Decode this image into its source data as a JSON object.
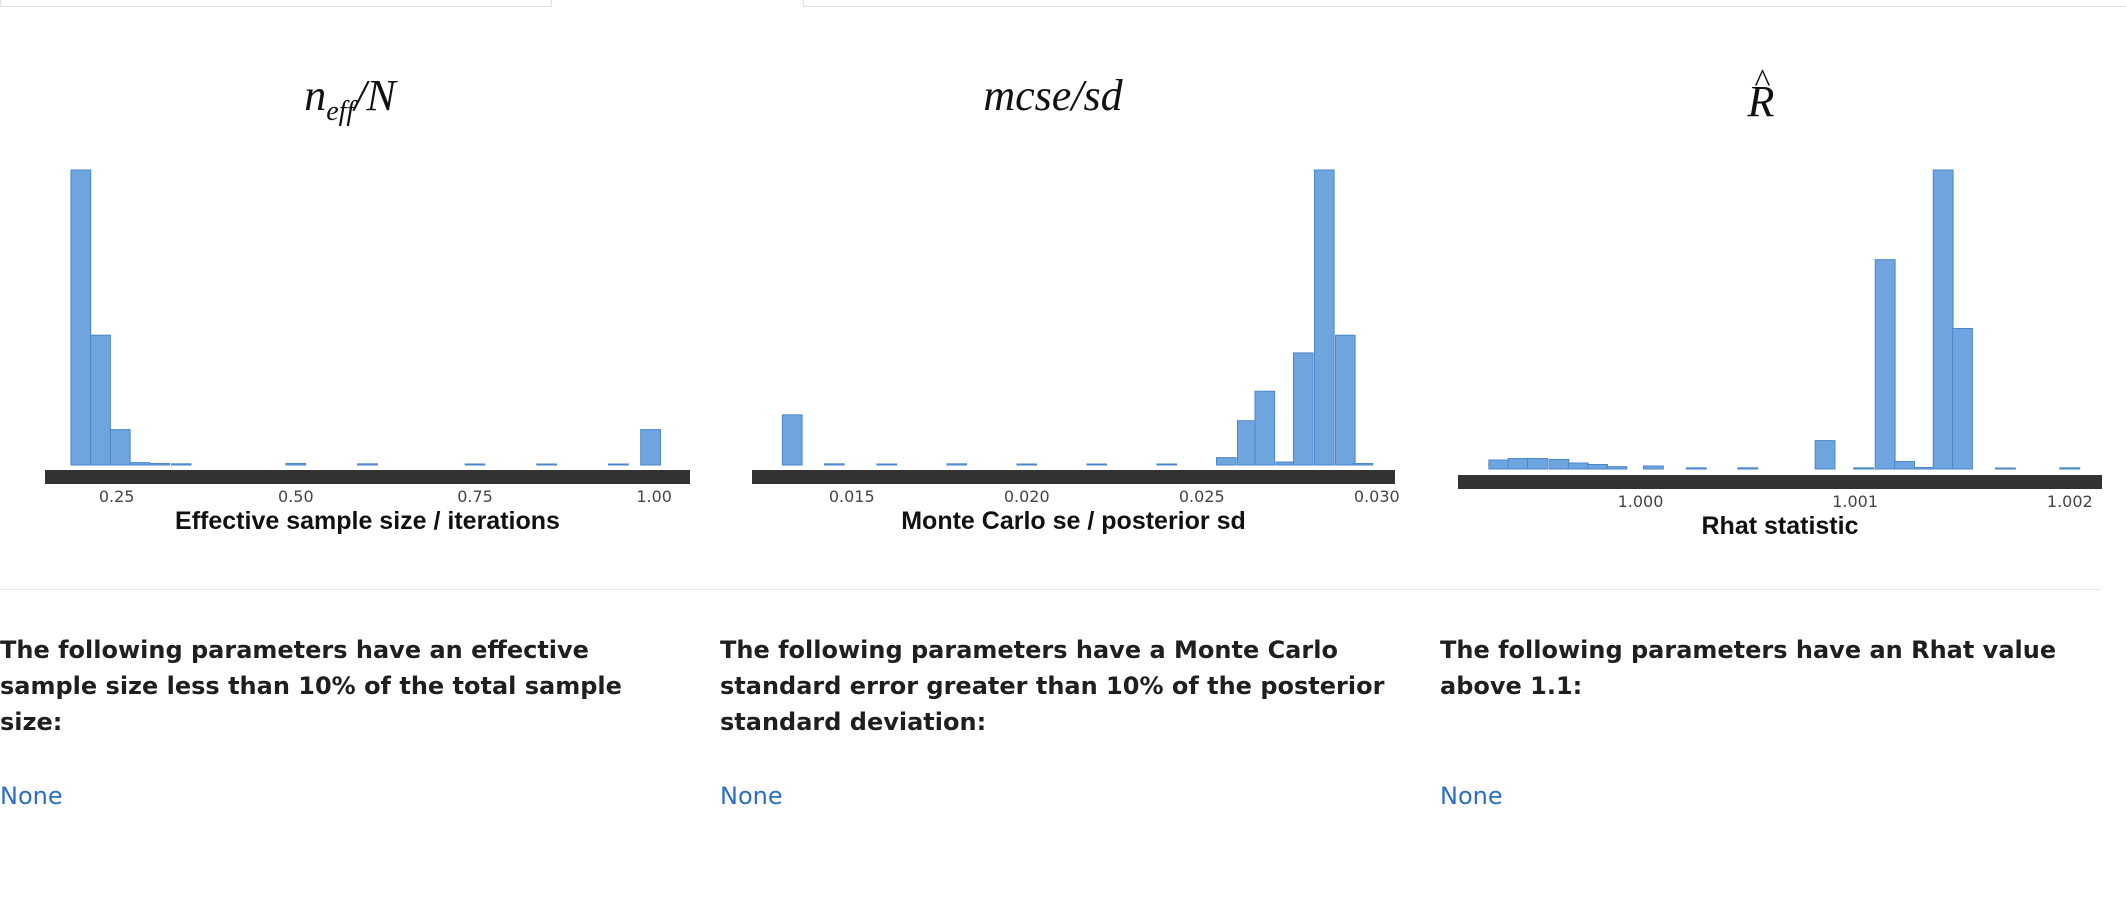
{
  "chart_data": [
    {
      "type": "bar",
      "title_main": "n",
      "title_sub": "eff",
      "title_rest": "/N",
      "xlabel": "Effective sample size / iterations",
      "xticks": [
        0.25,
        0.5,
        0.75,
        1.0
      ],
      "xtick_labels": [
        "0.25",
        "0.50",
        "0.75",
        "1.00"
      ],
      "xlim": [
        0.15,
        1.05
      ],
      "ylim": [
        0,
        100
      ],
      "bar_width": 0.0275,
      "bars": [
        {
          "x": 0.2,
          "y": 100
        },
        {
          "x": 0.2275,
          "y": 44
        },
        {
          "x": 0.255,
          "y": 12
        },
        {
          "x": 0.2825,
          "y": 0.8
        },
        {
          "x": 0.31,
          "y": 0.5
        },
        {
          "x": 0.34,
          "y": 0.4
        },
        {
          "x": 0.5,
          "y": 0.5
        },
        {
          "x": 0.6,
          "y": 0.4
        },
        {
          "x": 0.75,
          "y": 0.3
        },
        {
          "x": 0.85,
          "y": 0.3
        },
        {
          "x": 0.95,
          "y": 0.3
        },
        {
          "x": 0.995,
          "y": 12
        }
      ]
    },
    {
      "type": "bar",
      "title_main": "mcse/sd",
      "xlabel": "Monte Carlo se / posterior sd",
      "xticks": [
        0.015,
        0.02,
        0.025,
        0.03
      ],
      "xtick_labels": [
        "0.015",
        "0.020",
        "0.025",
        "0.030"
      ],
      "xlim": [
        0.01215,
        0.03052
      ],
      "ylim": [
        0,
        100
      ],
      "bar_width": 0.00056,
      "bars": [
        {
          "x": 0.0133,
          "y": 17
        },
        {
          "x": 0.0145,
          "y": 0.4
        },
        {
          "x": 0.016,
          "y": 0.3
        },
        {
          "x": 0.018,
          "y": 0.4
        },
        {
          "x": 0.02,
          "y": 0.3
        },
        {
          "x": 0.022,
          "y": 0.3
        },
        {
          "x": 0.024,
          "y": 0.3
        },
        {
          "x": 0.0257,
          "y": 2.5
        },
        {
          "x": 0.0263,
          "y": 15
        },
        {
          "x": 0.0268,
          "y": 25
        },
        {
          "x": 0.0274,
          "y": 1
        },
        {
          "x": 0.0279,
          "y": 38
        },
        {
          "x": 0.0285,
          "y": 100
        },
        {
          "x": 0.0291,
          "y": 44
        },
        {
          "x": 0.0296,
          "y": 0.5
        }
      ]
    },
    {
      "type": "bar",
      "title_main": "R",
      "title_hat": "^",
      "xlabel": "Rhat statistic",
      "xticks": [
        1.0,
        1.001,
        1.002
      ],
      "xtick_labels": [
        "1.000",
        "1.001",
        "1.002"
      ],
      "xlim": [
        0.99915,
        1.00215
      ],
      "ylim": [
        0,
        100
      ],
      "bar_width": 9.25e-05,
      "bars": [
        {
          "x": 0.99934,
          "y": 3
        },
        {
          "x": 0.99943,
          "y": 3.5
        },
        {
          "x": 0.99952,
          "y": 3.5
        },
        {
          "x": 0.99962,
          "y": 3.2
        },
        {
          "x": 0.99971,
          "y": 2
        },
        {
          "x": 0.9998,
          "y": 1.5
        },
        {
          "x": 0.99989,
          "y": 0.8
        },
        {
          "x": 1.00006,
          "y": 1
        },
        {
          "x": 1.00026,
          "y": 0.4
        },
        {
          "x": 1.0005,
          "y": 0.4
        },
        {
          "x": 1.00086,
          "y": 9.5
        },
        {
          "x": 1.00104,
          "y": 0.4
        },
        {
          "x": 1.00114,
          "y": 70
        },
        {
          "x": 1.00123,
          "y": 2.5
        },
        {
          "x": 1.00132,
          "y": 0.5
        },
        {
          "x": 1.00141,
          "y": 100
        },
        {
          "x": 1.0015,
          "y": 47
        },
        {
          "x": 1.0017,
          "y": 0.3
        },
        {
          "x": 1.002,
          "y": 0.4
        }
      ]
    }
  ],
  "notes": [
    {
      "text": "The following parameters have an effective sample size less than 10% of the total sample size:",
      "link": "None"
    },
    {
      "text": "The following parameters have a Monte Carlo standard error greater than 10% of the posterior standard deviation:",
      "link": "None"
    },
    {
      "text": "The following parameters have an Rhat value above 1.1:",
      "link": "None"
    }
  ],
  "colors": {
    "bar_fill": "#6fa5df",
    "bar_stroke": "#4a86c9",
    "axis": "#333333",
    "link": "#2c6fc0"
  }
}
